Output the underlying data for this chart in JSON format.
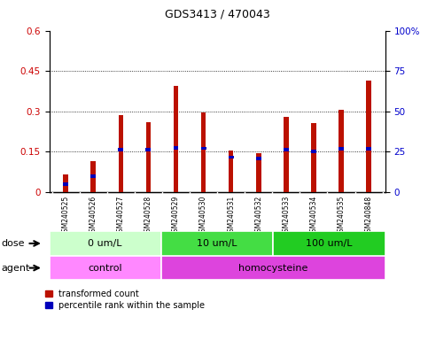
{
  "title": "GDS3413 / 470043",
  "samples": [
    "GSM240525",
    "GSM240526",
    "GSM240527",
    "GSM240528",
    "GSM240529",
    "GSM240530",
    "GSM240531",
    "GSM240532",
    "GSM240533",
    "GSM240534",
    "GSM240535",
    "GSM240848"
  ],
  "transformed_count": [
    0.065,
    0.115,
    0.285,
    0.26,
    0.395,
    0.295,
    0.155,
    0.145,
    0.28,
    0.255,
    0.305,
    0.415
  ],
  "percentile_rank_left": [
    0.03,
    0.06,
    0.158,
    0.158,
    0.165,
    0.163,
    0.13,
    0.125,
    0.158,
    0.152,
    0.16,
    0.162
  ],
  "red_color": "#bb1100",
  "blue_color": "#0000bb",
  "ylim_left": [
    0,
    0.6
  ],
  "ylim_right": [
    0,
    100
  ],
  "yticks_left": [
    0,
    0.15,
    0.3,
    0.45,
    0.6
  ],
  "yticks_right": [
    0,
    25,
    50,
    75,
    100
  ],
  "ytick_labels_left": [
    "0",
    "0.15",
    "0.3",
    "0.45",
    "0.6"
  ],
  "ytick_labels_right": [
    "0",
    "25",
    "50",
    "75",
    "100%"
  ],
  "dose_groups": [
    {
      "label": "0 um/L",
      "start": 0,
      "end": 4,
      "color": "#ccffcc"
    },
    {
      "label": "10 um/L",
      "start": 4,
      "end": 8,
      "color": "#44dd44"
    },
    {
      "label": "100 um/L",
      "start": 8,
      "end": 12,
      "color": "#22cc22"
    }
  ],
  "agent_groups": [
    {
      "label": "control",
      "start": 0,
      "end": 4,
      "color": "#ff88ff"
    },
    {
      "label": "homocysteine",
      "start": 4,
      "end": 12,
      "color": "#dd44dd"
    }
  ],
  "dose_label": "dose",
  "agent_label": "agent",
  "legend_red": "transformed count",
  "legend_blue": "percentile rank within the sample",
  "bar_width": 0.18,
  "tick_label_color_left": "#cc0000",
  "tick_label_color_right": "#0000cc",
  "xtick_bg_color": "#cccccc",
  "title_fontsize": 9,
  "axis_fontsize": 7.5,
  "label_fontsize": 8,
  "legend_fontsize": 7
}
